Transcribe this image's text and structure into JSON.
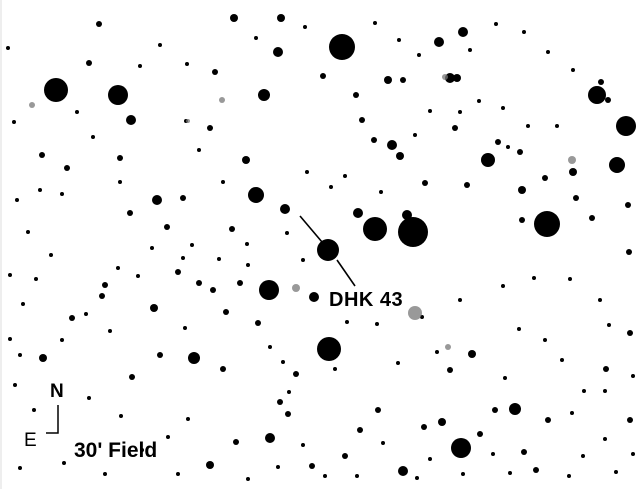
{
  "finder_chart": {
    "object_label": "DHK 43",
    "field_label": "30' Field",
    "compass": {
      "north": "N",
      "east": "E"
    },
    "colors": {
      "background": "#ffffff",
      "star": "#000000",
      "nebulous": "#777777"
    }
  }
}
